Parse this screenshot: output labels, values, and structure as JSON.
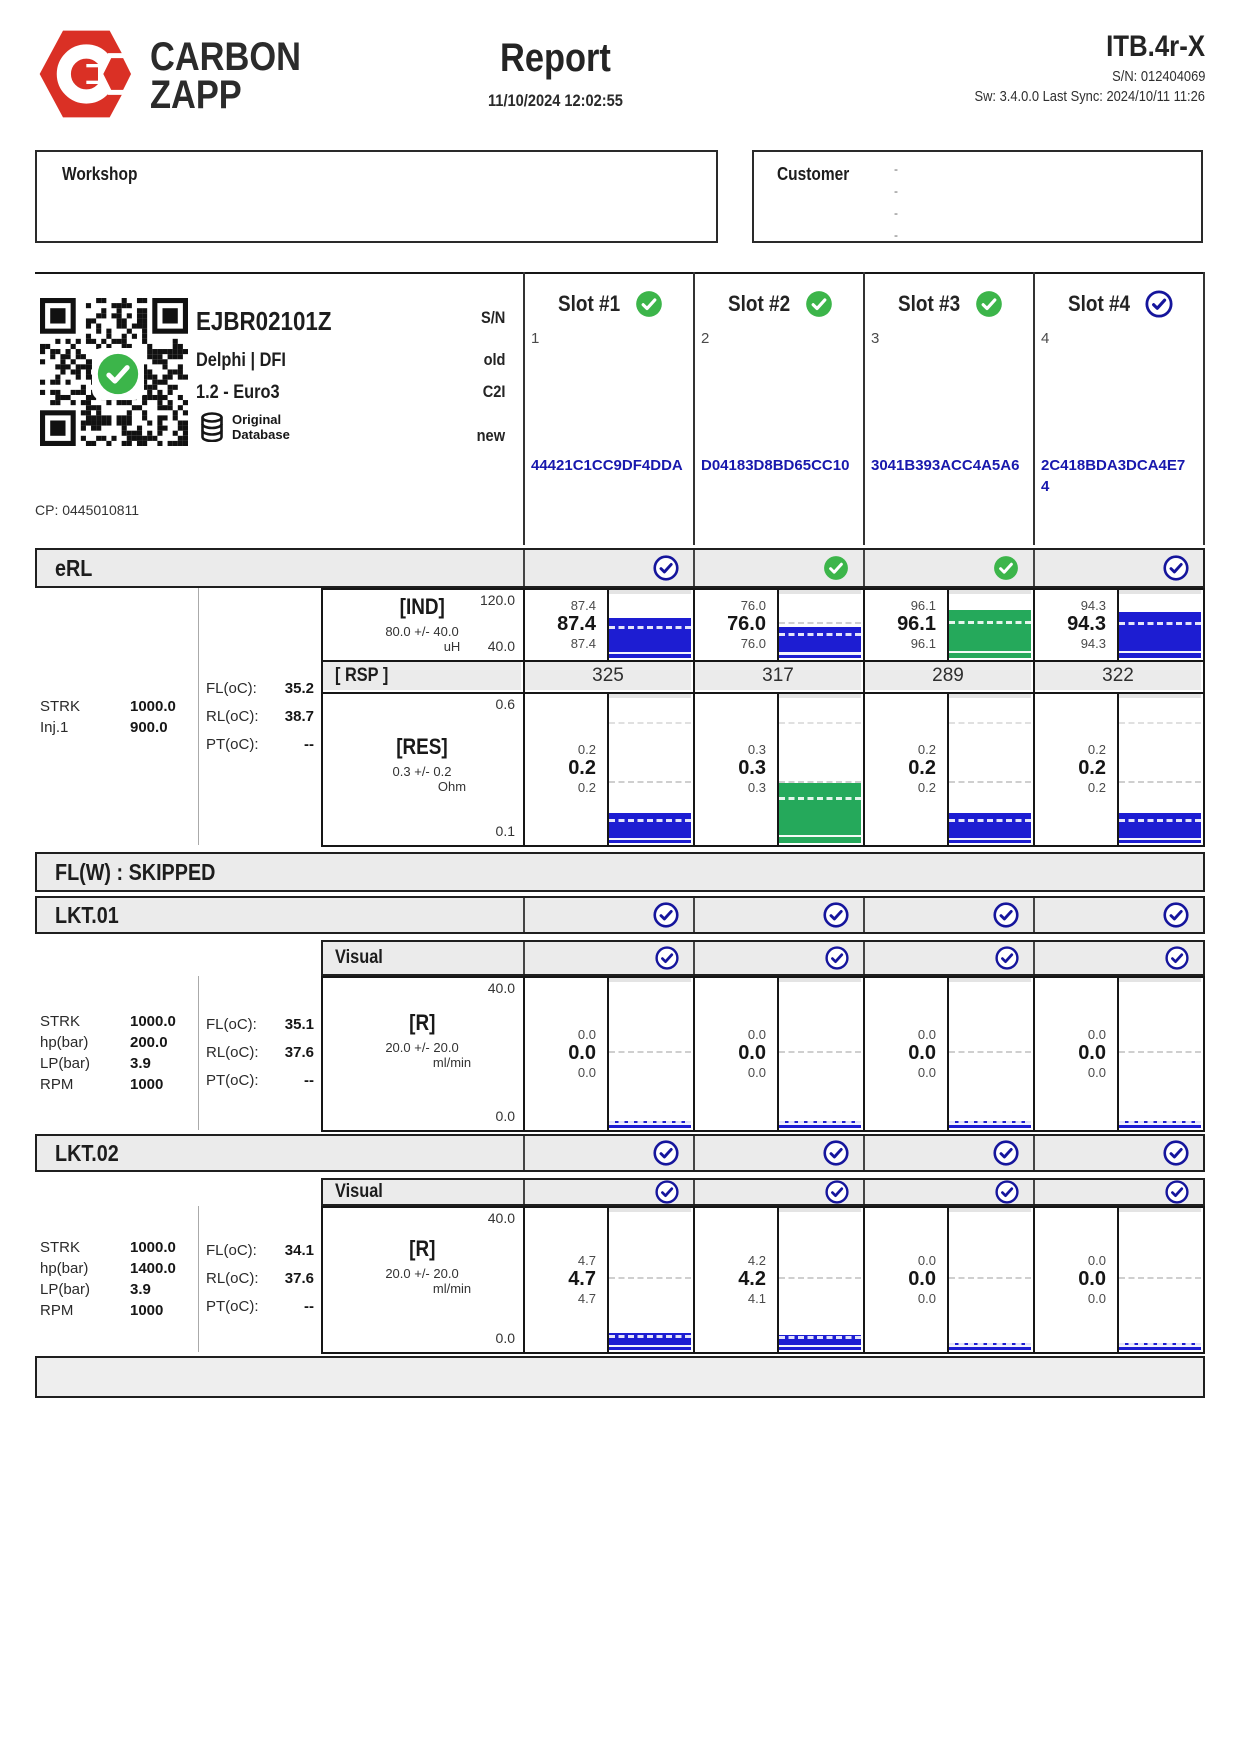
{
  "header": {
    "brand_line1": "CARBON",
    "brand_line2": "ZAPP",
    "report_title": "Report",
    "report_datetime": "11/10/2024 12:02:55",
    "device_model": "ITB.4r-X",
    "device_serial": "S/N: 012404069",
    "sw_line": "Sw: 3.4.0.0 Last Sync: 2024/10/11 11:26"
  },
  "workshop": {
    "label": "Workshop"
  },
  "customer": {
    "label": "Customer",
    "placeholders": [
      "-",
      "-",
      "-",
      "-"
    ]
  },
  "injector": {
    "part_number": "EJBR02101Z",
    "maker": "Delphi | DFI",
    "variant": "1.2 - Euro3",
    "db_badge_line1": "Original",
    "db_badge_line2": "Database",
    "cp": "CP: 0445010811",
    "labels": {
      "sn": "S/N",
      "old": "old",
      "c2i": "C2I",
      "new": "new"
    },
    "qr_status": "verified"
  },
  "slots": [
    {
      "title": "Slot #1",
      "status": "green",
      "sn": "1",
      "new_code": "44421C1CC9DF4DDA"
    },
    {
      "title": "Slot #2",
      "status": "green",
      "sn": "2",
      "new_code": "D04183D8BD65CC10"
    },
    {
      "title": "Slot #3",
      "status": "green",
      "sn": "3",
      "new_code": "3041B393ACC4A5A6"
    },
    {
      "title": "Slot #4",
      "status": "blue",
      "sn": "4",
      "new_code": "2C418BDA3DCA4E74"
    }
  ],
  "sections": {
    "erl": {
      "title": "eRL",
      "checks": [
        "blue",
        "green",
        "green",
        "blue"
      ],
      "info": [
        [
          "STRK",
          "1000.0"
        ],
        [
          "Inj.1",
          "900.0"
        ]
      ],
      "temps": [
        [
          "FL(oC):",
          "35.2"
        ],
        [
          "RL(oC):",
          "38.7"
        ],
        [
          "PT(oC):",
          "--"
        ]
      ],
      "tests": {
        "ind": {
          "title": "[IND]",
          "spec": "80.0 +/- 40.0",
          "unit": "uH",
          "axis_max": 120.0,
          "axis_min": 40.0,
          "nominal": 80.0,
          "upper": 120.0,
          "slots": [
            {
              "max": "87.4",
              "avg": "87.4",
              "min": "87.4",
              "value": 87.4,
              "color": "blue"
            },
            {
              "max": "76.0",
              "avg": "76.0",
              "min": "76.0",
              "value": 76.0,
              "color": "blue"
            },
            {
              "max": "96.1",
              "avg": "96.1",
              "min": "96.1",
              "value": 96.1,
              "color": "green"
            },
            {
              "max": "94.3",
              "avg": "94.3",
              "min": "94.3",
              "value": 94.3,
              "color": "blue"
            }
          ]
        },
        "rsp": {
          "title": "[ RSP ]",
          "values": [
            "325",
            "317",
            "289",
            "322"
          ]
        },
        "res": {
          "title": "[RES]",
          "spec": "0.3 +/- 0.2",
          "unit": "Ohm",
          "axis_max": 0.6,
          "axis_min": 0.1,
          "nominal": 0.3,
          "upper": 0.5,
          "slots": [
            {
              "max": "0.2",
              "avg": "0.2",
              "min": "0.2",
              "value": 0.2,
              "color": "blue"
            },
            {
              "max": "0.3",
              "avg": "0.3",
              "min": "0.3",
              "value": 0.3,
              "color": "green"
            },
            {
              "max": "0.2",
              "avg": "0.2",
              "min": "0.2",
              "value": 0.2,
              "color": "blue"
            },
            {
              "max": "0.2",
              "avg": "0.2",
              "min": "0.2",
              "value": 0.2,
              "color": "blue"
            }
          ]
        }
      }
    },
    "flw": {
      "title": "FL(W) : SKIPPED"
    },
    "lkt01": {
      "title": "LKT.01",
      "checks": [
        "blue",
        "blue",
        "blue",
        "blue"
      ],
      "visual_label": "Visual",
      "visual_checks": [
        "blue",
        "blue",
        "blue",
        "blue"
      ],
      "info": [
        [
          "STRK",
          "1000.0"
        ],
        [
          "hp(bar)",
          "200.0"
        ],
        [
          "LP(bar)",
          "3.9"
        ],
        [
          "RPM",
          "1000"
        ]
      ],
      "temps": [
        [
          "FL(oC):",
          "35.1"
        ],
        [
          "RL(oC):",
          "37.6"
        ],
        [
          "PT(oC):",
          "--"
        ]
      ],
      "test": {
        "title": "[R]",
        "spec": "20.0 +/- 20.0",
        "unit": "ml/min",
        "axis_max": 40.0,
        "axis_min": 0.0,
        "nominal": 20.0,
        "upper": 40.0,
        "slots": [
          {
            "max": "0.0",
            "avg": "0.0",
            "min": "0.0",
            "value": 0.0,
            "color": "blue"
          },
          {
            "max": "0.0",
            "avg": "0.0",
            "min": "0.0",
            "value": 0.0,
            "color": "blue"
          },
          {
            "max": "0.0",
            "avg": "0.0",
            "min": "0.0",
            "value": 0.0,
            "color": "blue"
          },
          {
            "max": "0.0",
            "avg": "0.0",
            "min": "0.0",
            "value": 0.0,
            "color": "blue"
          }
        ]
      }
    },
    "lkt02": {
      "title": "LKT.02",
      "checks": [
        "blue",
        "blue",
        "blue",
        "blue"
      ],
      "visual_label": "Visual",
      "visual_checks": [
        "blue",
        "blue",
        "blue",
        "blue"
      ],
      "info": [
        [
          "STRK",
          "1000.0"
        ],
        [
          "hp(bar)",
          "1400.0"
        ],
        [
          "LP(bar)",
          "3.9"
        ],
        [
          "RPM",
          "1000"
        ]
      ],
      "temps": [
        [
          "FL(oC):",
          "34.1"
        ],
        [
          "RL(oC):",
          "37.6"
        ],
        [
          "PT(oC):",
          "--"
        ]
      ],
      "test": {
        "title": "[R]",
        "spec": "20.0 +/- 20.0",
        "unit": "ml/min",
        "axis_max": 40.0,
        "axis_min": 0.0,
        "nominal": 20.0,
        "upper": 40.0,
        "slots": [
          {
            "max": "4.7",
            "avg": "4.7",
            "min": "4.7",
            "value": 4.7,
            "color": "blue"
          },
          {
            "max": "4.2",
            "avg": "4.2",
            "min": "4.1",
            "value": 4.2,
            "color": "blue"
          },
          {
            "max": "0.0",
            "avg": "0.0",
            "min": "0.0",
            "value": 0.0,
            "color": "blue"
          },
          {
            "max": "0.0",
            "avg": "0.0",
            "min": "0.0",
            "value": 0.0,
            "color": "blue"
          }
        ]
      }
    }
  },
  "colors": {
    "accent_red": "#da3025",
    "bar_blue": "#1d1dd2",
    "bar_green": "#25a95b",
    "check_green": "#3cb54a",
    "check_blue": "#15159c",
    "code_navy": "#1818ad"
  }
}
